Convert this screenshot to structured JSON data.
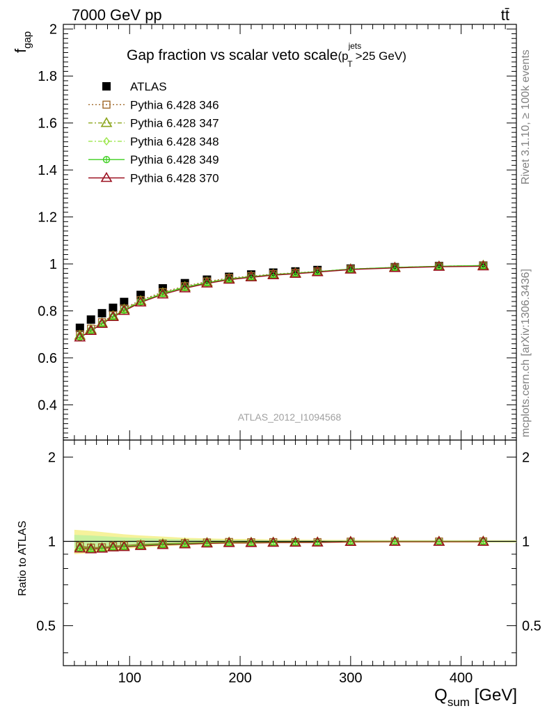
{
  "header": {
    "energy_label": "7000 GeV pp",
    "process_label": "tt̄"
  },
  "side": {
    "rivet_label": "Rivet 3.1.10, ≥ 100k events",
    "source_label": "mcplots.cern.ch [arXiv:1306.3436]"
  },
  "chart_data": [
    {
      "type": "scatter",
      "panel": "main",
      "title_main": "Gap fraction vs scalar veto scale",
      "title_paren_open": "(p",
      "title_sup": "jets",
      "title_sub": "T",
      "title_tail": ">25 GeV)",
      "ylabel_main": "f",
      "ylabel_sub": "gap",
      "watermark": "ATLAS_2012_I1094568",
      "xlim": [
        40,
        450
      ],
      "ylim": [
        0.25,
        2.02
      ],
      "y_ticks": [
        "0.4",
        "0.6",
        "0.8",
        "1",
        "1.2",
        "1.4",
        "1.6",
        "1.8",
        "2"
      ],
      "legend_position": "top-left",
      "x": [
        55,
        65,
        75,
        85,
        95,
        110,
        130,
        150,
        170,
        190,
        210,
        230,
        250,
        270,
        300,
        340,
        380,
        420
      ],
      "series": [
        {
          "name": "ATLAS",
          "color": "#000000",
          "marker": "filled-square",
          "values": [
            0.728,
            0.763,
            0.79,
            0.813,
            0.838,
            0.868,
            0.896,
            0.918,
            0.933,
            0.945,
            0.955,
            0.963,
            0.968,
            0.974,
            0.98,
            0.986,
            0.991,
            0.993
          ]
        },
        {
          "name": "Pythia 6.428 346",
          "color": "#a0692a",
          "marker": "open-square",
          "line": "dotted",
          "values": [
            0.7,
            0.725,
            0.752,
            0.782,
            0.81,
            0.846,
            0.88,
            0.905,
            0.925,
            0.94,
            0.948,
            0.957,
            0.962,
            0.968,
            0.978,
            0.985,
            0.99,
            0.993
          ]
        },
        {
          "name": "Pythia 6.428 347",
          "color": "#8aa41a",
          "marker": "open-triangle",
          "line": "dashdot",
          "values": [
            0.695,
            0.72,
            0.748,
            0.778,
            0.806,
            0.842,
            0.876,
            0.902,
            0.922,
            0.937,
            0.946,
            0.955,
            0.961,
            0.967,
            0.978,
            0.985,
            0.99,
            0.993
          ]
        },
        {
          "name": "Pythia 6.428 348",
          "color": "#9ce64a",
          "marker": "open-diamond",
          "line": "dashdot",
          "values": [
            0.69,
            0.718,
            0.747,
            0.777,
            0.804,
            0.84,
            0.875,
            0.901,
            0.921,
            0.936,
            0.946,
            0.955,
            0.961,
            0.967,
            0.978,
            0.985,
            0.99,
            0.993
          ]
        },
        {
          "name": "Pythia 6.428 349",
          "color": "#3ccf1e",
          "marker": "open-circle-cross",
          "line": "solid",
          "values": [
            0.688,
            0.716,
            0.746,
            0.776,
            0.803,
            0.839,
            0.874,
            0.9,
            0.92,
            0.935,
            0.945,
            0.954,
            0.96,
            0.967,
            0.978,
            0.985,
            0.99,
            0.993
          ]
        },
        {
          "name": "Pythia 6.428 370",
          "color": "#9b1020",
          "marker": "open-triangle",
          "line": "solid",
          "values": [
            0.687,
            0.715,
            0.745,
            0.774,
            0.8,
            0.836,
            0.87,
            0.896,
            0.917,
            0.933,
            0.943,
            0.952,
            0.958,
            0.965,
            0.976,
            0.983,
            0.988,
            0.99
          ]
        }
      ]
    },
    {
      "type": "scatter",
      "panel": "ratio",
      "ylabel": "Ratio to ATLAS",
      "xlabel_main": "Q",
      "xlabel_sub": "sum",
      "xlabel_tail": " [GeV]",
      "xlim": [
        40,
        450
      ],
      "ylim": [
        0.36,
        2.3
      ],
      "y_ticks": [
        "0.5",
        "1",
        "2"
      ],
      "x_ticks": [
        "100",
        "200",
        "300",
        "400"
      ],
      "x": [
        55,
        65,
        75,
        85,
        95,
        110,
        130,
        150,
        170,
        190,
        210,
        230,
        250,
        270,
        300,
        340,
        380,
        420
      ],
      "band_upper": [
        1.1,
        1.09,
        1.08,
        1.07,
        1.06,
        1.05,
        1.04,
        1.03,
        1.025,
        1.02,
        1.02,
        1.015,
        1.015,
        1.013,
        1.012,
        1.01,
        1.01,
        1.01
      ],
      "band_lower": [
        0.9,
        0.91,
        0.92,
        0.93,
        0.94,
        0.95,
        0.96,
        0.97,
        0.975,
        0.98,
        0.98,
        0.985,
        0.985,
        0.987,
        0.988,
        0.99,
        0.99,
        0.99
      ],
      "band_color": "#f5f08a",
      "band_color_inner": "#b8f0a0",
      "series": [
        {
          "name": "Pythia 6.428 346",
          "color": "#a0692a",
          "marker": "open-square",
          "values": [
            0.962,
            0.95,
            0.952,
            0.962,
            0.967,
            0.975,
            0.982,
            0.986,
            0.991,
            0.995,
            0.993,
            0.994,
            0.994,
            0.994,
            0.998,
            0.999,
            0.999,
            1.0
          ]
        },
        {
          "name": "Pythia 6.428 347",
          "color": "#8aa41a",
          "marker": "open-triangle",
          "values": [
            0.955,
            0.944,
            0.947,
            0.957,
            0.962,
            0.97,
            0.978,
            0.983,
            0.988,
            0.992,
            0.991,
            0.992,
            0.993,
            0.993,
            0.998,
            0.999,
            0.999,
            1.0
          ]
        },
        {
          "name": "Pythia 6.428 348",
          "color": "#9ce64a",
          "marker": "open-diamond",
          "values": [
            0.948,
            0.941,
            0.946,
            0.956,
            0.96,
            0.968,
            0.977,
            0.982,
            0.987,
            0.991,
            0.991,
            0.992,
            0.993,
            0.993,
            0.998,
            0.999,
            0.999,
            1.0
          ]
        },
        {
          "name": "Pythia 6.428 349",
          "color": "#3ccf1e",
          "marker": "open-circle-cross",
          "values": [
            0.945,
            0.938,
            0.944,
            0.954,
            0.958,
            0.967,
            0.976,
            0.981,
            0.986,
            0.99,
            0.99,
            0.991,
            0.992,
            0.993,
            0.998,
            0.999,
            0.999,
            1.0
          ]
        },
        {
          "name": "Pythia 6.428 370",
          "color": "#9b1020",
          "marker": "open-triangle",
          "values": [
            0.944,
            0.937,
            0.943,
            0.952,
            0.955,
            0.963,
            0.971,
            0.976,
            0.983,
            0.987,
            0.987,
            0.989,
            0.99,
            0.991,
            0.996,
            0.997,
            0.997,
            0.997
          ]
        }
      ]
    }
  ]
}
